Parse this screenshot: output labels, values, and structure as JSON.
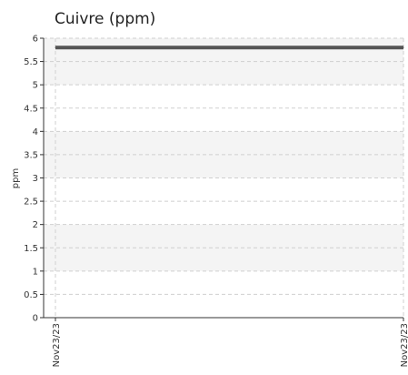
{
  "chart_data": {
    "type": "line",
    "title": "Cuivre (ppm)",
    "xlabel": "",
    "ylabel": "ppm",
    "x": [
      "Nov23/23",
      "Nov23/23"
    ],
    "series": [
      {
        "values": [
          5.8,
          5.8
        ]
      }
    ],
    "ylim": [
      0,
      6
    ],
    "yticks": [
      "0",
      "0.5",
      "1",
      "1.5",
      "2",
      "2.5",
      "3",
      "3.5",
      "4",
      "4.5",
      "5",
      "5.5",
      "6"
    ],
    "grid": true,
    "legend": "none",
    "colors": {
      "line": "#555555",
      "band": "#f4f4f4",
      "grid": "#cfcfcf",
      "axis": "#333333"
    }
  }
}
